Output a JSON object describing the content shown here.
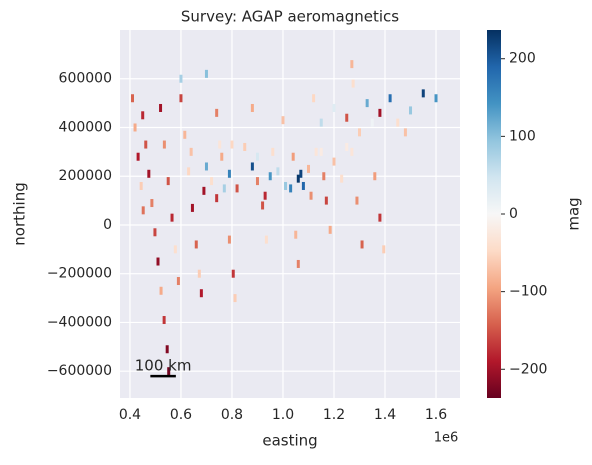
{
  "chart_data": {
    "type": "scatter",
    "title": "Survey: AGAP aeromagnetics",
    "xlabel": "easting",
    "ylabel": "northing",
    "x_offset_label": "1e6",
    "xlim": [
      361000,
      1694000
    ],
    "ylim": [
      -710000,
      800000
    ],
    "xticks": [
      {
        "value": 400000,
        "label": "0.4"
      },
      {
        "value": 600000,
        "label": "0.6"
      },
      {
        "value": 800000,
        "label": "0.8"
      },
      {
        "value": 1000000,
        "label": "1.0"
      },
      {
        "value": 1200000,
        "label": "1.2"
      },
      {
        "value": 1400000,
        "label": "1.4"
      },
      {
        "value": 1600000,
        "label": "1.6"
      }
    ],
    "yticks": [
      {
        "value": -600000,
        "label": "−600000"
      },
      {
        "value": -400000,
        "label": "−400000"
      },
      {
        "value": -200000,
        "label": "−200000"
      },
      0,
      200000,
      400000,
      600000
    ],
    "grid": true,
    "colormap": "RdBu",
    "colorbar_label": "mag",
    "clim": [
      -237,
      237
    ],
    "cticks": [
      {
        "value": -200,
        "label": "−200"
      },
      {
        "value": -100,
        "label": "−100"
      },
      0,
      100,
      200
    ],
    "scalebar": {
      "label": "100 km",
      "length": 100000,
      "x": 480000,
      "y": -620000
    },
    "x": [
      450000,
      462000,
      474000,
      486000,
      498000,
      510000,
      522000,
      534000,
      546000,
      552000,
      410000,
      420000,
      432000,
      444000,
      452000,
      520000,
      535000,
      550000,
      565000,
      578000,
      590000,
      600000,
      615000,
      630000,
      645000,
      660000,
      672000,
      680000,
      740000,
      752000,
      770000,
      790000,
      805000,
      812000,
      880000,
      900000,
      920000,
      935000,
      1000000,
      1030000,
      1050000,
      1060000,
      1120000,
      1150000,
      1170000,
      1185000,
      1270000,
      1290000,
      1310000,
      1360000,
      1380000,
      1395000,
      1270000,
      1275000,
      640000,
      700000,
      720000,
      760000,
      790000,
      820000,
      850000,
      880000,
      900000,
      930000,
      960000,
      980000,
      1010000,
      1040000,
      1060000,
      1080000,
      1100000,
      1130000,
      1160000,
      1200000,
      1230000,
      1250000,
      690000,
      740000,
      800000,
      950000,
      1070000,
      1110000,
      1150000,
      1200000,
      1250000,
      1300000,
      1330000,
      1380000,
      1420000,
      1450000,
      1500000,
      1550000,
      1600000,
      1480000,
      1350000,
      600000,
      700000
    ],
    "y": [
      450000,
      330000,
      210000,
      90000,
      -30000,
      -150000,
      -270000,
      -390000,
      -510000,
      -600000,
      520000,
      400000,
      280000,
      160000,
      60000,
      480000,
      330000,
      180000,
      30000,
      -100000,
      -230000,
      520000,
      370000,
      220000,
      70000,
      -80000,
      -200000,
      -280000,
      460000,
      330000,
      150000,
      -60000,
      -200000,
      -300000,
      480000,
      280000,
      80000,
      -60000,
      430000,
      150000,
      -40000,
      -160000,
      520000,
      300000,
      100000,
      -20000,
      300000,
      100000,
      -80000,
      200000,
      30000,
      -100000,
      660000,
      580000,
      300000,
      240000,
      180000,
      280000,
      210000,
      150000,
      320000,
      240000,
      180000,
      120000,
      300000,
      220000,
      160000,
      280000,
      190000,
      160000,
      230000,
      300000,
      200000,
      260000,
      190000,
      320000,
      140000,
      110000,
      330000,
      200000,
      210000,
      120000,
      420000,
      480000,
      440000,
      380000,
      500000,
      460000,
      520000,
      420000,
      470000,
      540000,
      520000,
      380000,
      420000,
      600000,
      620000
    ],
    "c": [
      -180,
      -150,
      -200,
      -120,
      -160,
      -210,
      -90,
      -170,
      -220,
      -230,
      -140,
      -90,
      -190,
      -60,
      -130,
      -200,
      -110,
      -150,
      -180,
      -40,
      -120,
      -160,
      -80,
      -50,
      -200,
      -140,
      -60,
      -190,
      -120,
      -30,
      80,
      -110,
      -170,
      -60,
      -90,
      40,
      -150,
      -40,
      -70,
      160,
      -80,
      -120,
      -50,
      -20,
      -160,
      -90,
      -30,
      -110,
      -140,
      -100,
      -170,
      -60,
      -80,
      -40,
      -70,
      120,
      -40,
      -90,
      160,
      -150,
      -60,
      210,
      -120,
      -180,
      -40,
      60,
      90,
      -100,
      230,
      190,
      -80,
      -30,
      -120,
      -70,
      -40,
      -20,
      -200,
      -170,
      -50,
      140,
      220,
      -110,
      60,
      30,
      -150,
      -60,
      120,
      -200,
      180,
      -40,
      90,
      220,
      140,
      -70,
      10,
      80,
      100
    ]
  }
}
